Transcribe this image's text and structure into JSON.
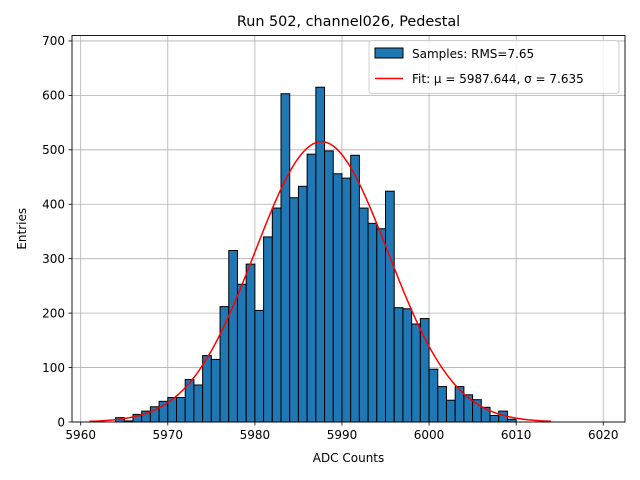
{
  "chart_data": {
    "type": "bar",
    "title": "Run 502, channel026, Pedestal",
    "xlabel": "ADC Counts",
    "ylabel": "Entries",
    "xlim": [
      5959.0,
      6022.5
    ],
    "ylim": [
      0,
      710
    ],
    "xticks": [
      5960,
      5970,
      5980,
      5990,
      6000,
      6010,
      6020
    ],
    "yticks": [
      0,
      100,
      200,
      300,
      400,
      500,
      600,
      700
    ],
    "grid": true,
    "legend_position": "top-right",
    "colors": {
      "bar_fill": "#1f77b4",
      "bar_edge": "#000000",
      "fit_line": "#ff0000",
      "grid": "#b0b0b0"
    },
    "bins": {
      "left_edges": [
        5964,
        5965,
        5966,
        5967,
        5968,
        5969,
        5970,
        5971,
        5972,
        5973,
        5974,
        5975,
        5976,
        5977,
        5978,
        5979,
        5980,
        5981,
        5982,
        5983,
        5984,
        5985,
        5986,
        5987,
        5988,
        5989,
        5990,
        5991,
        5992,
        5993,
        5994,
        5995,
        5996,
        5997,
        5998,
        5999,
        6000,
        6001,
        6002,
        6003,
        6004,
        6005,
        6006,
        6007,
        6008,
        6009
      ],
      "width": 1,
      "counts": [
        8,
        2,
        14,
        20,
        28,
        38,
        45,
        45,
        78,
        68,
        122,
        115,
        212,
        315,
        253,
        290,
        205,
        340,
        393,
        603,
        412,
        433,
        492,
        615,
        498,
        456,
        448,
        490,
        393,
        365,
        355,
        424,
        210,
        208,
        180,
        190,
        97,
        65,
        40,
        65,
        50,
        41,
        27,
        12,
        20,
        5
      ]
    },
    "legend": [
      {
        "label": "Samples: RMS=7.65",
        "kind": "patch"
      },
      {
        "label": "Fit: μ = 5987.644, σ = 7.635",
        "kind": "line"
      }
    ],
    "fit": {
      "type": "gaussian",
      "mu": 5987.644,
      "sigma": 7.635,
      "amplitude": 515,
      "x_range": [
        5961,
        6014
      ]
    }
  }
}
